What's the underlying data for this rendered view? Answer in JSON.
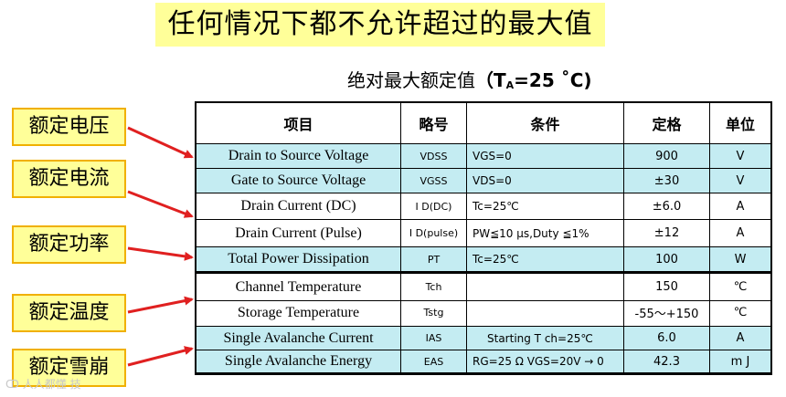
{
  "banner": "任何情况下都不允许超过的最大值",
  "subtitle": {
    "main": "绝对最大额定值",
    "cond_open": "（T",
    "cond_sub": "A",
    "cond_close": "=25 ˚C)"
  },
  "headers": [
    "项目",
    "略号",
    "条件",
    "定格",
    "单位"
  ],
  "rows": [
    {
      "item": "Drain to Source Voltage",
      "symbol": "VDSS",
      "condition": "VGS=0",
      "rating": "900",
      "unit": "V"
    },
    {
      "item": "Gate to Source Voltage",
      "symbol": "VGSS",
      "condition": "VDS=0",
      "rating": "±30",
      "unit": "V"
    },
    {
      "item": "Drain Current (DC)",
      "symbol": "I D(DC)",
      "condition": "Tc=25℃",
      "rating": "±6.0",
      "unit": "A"
    },
    {
      "item": "Drain Current (Pulse)",
      "symbol": "I D(pulse)",
      "condition": "PW≦10 μs,Duty ≦1%",
      "rating": "±12",
      "unit": "A"
    },
    {
      "item": "Total Power Dissipation",
      "symbol": "PT",
      "condition": "Tc=25℃",
      "rating": "100",
      "unit": "W"
    },
    {
      "item": "Channel Temperature",
      "symbol": "Tch",
      "condition": "",
      "rating": "150",
      "unit": "℃"
    },
    {
      "item": "Storage Temperature",
      "symbol": "Tstg",
      "condition": "",
      "rating": "-55～+150",
      "unit": "℃"
    },
    {
      "item": "Single Avalanche Current",
      "symbol": "IAS",
      "condition": "Starting T ch=25℃",
      "rating": "6.0",
      "unit": "A"
    },
    {
      "item": "Single Avalanche Energy",
      "symbol": "EAS",
      "condition": "RG=25 Ω VGS=20V → 0",
      "rating": "42.3",
      "unit": "m J"
    }
  ],
  "labels": [
    "额定电压",
    "额定电流",
    "额定功率",
    "额定温度",
    "额定雪崩"
  ],
  "watermark": "ↀ 人人都懂 技",
  "colors": {
    "banner_bg": "#ffff99",
    "label_border": "#f0b000",
    "row_highlight": "#c4ecf2",
    "arrow": "#e02020"
  }
}
